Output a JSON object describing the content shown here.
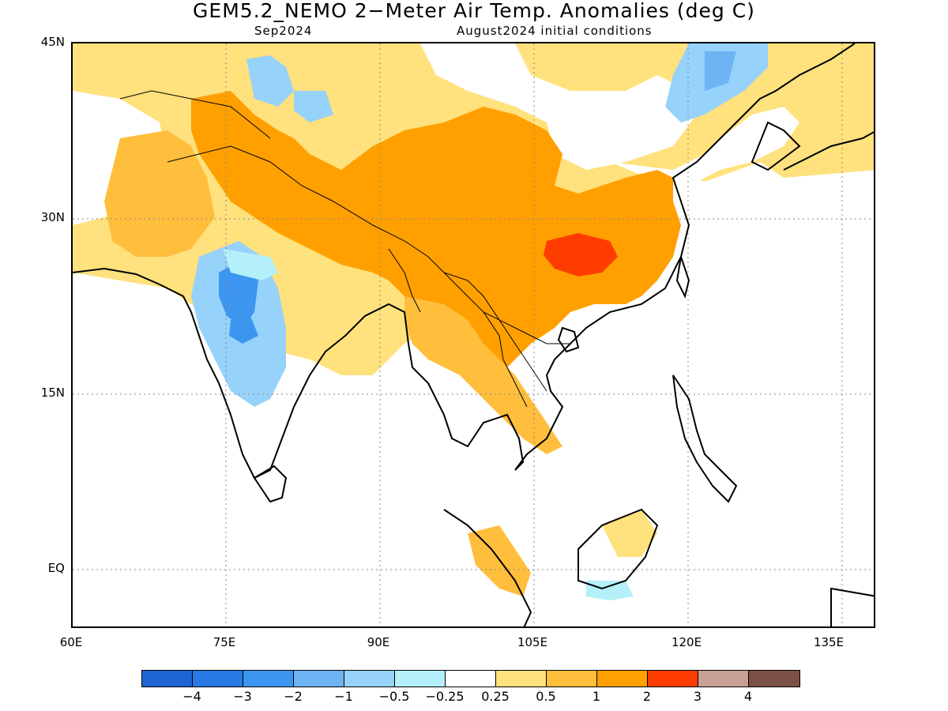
{
  "title": "GEM5.2_NEMO 2−Meter Air Temp. Anomalies (deg C)",
  "subtitle_left": "Sep2024",
  "subtitle_right": "August2024 initial conditions",
  "lat_labels": [
    "45N",
    "30N",
    "15N",
    "EQ"
  ],
  "lon_labels": [
    "60E",
    "75E",
    "90E",
    "105E",
    "120E",
    "135E"
  ],
  "colorbar": {
    "colors": [
      "#1e64d2",
      "#2878e6",
      "#3c96f0",
      "#6eb4f5",
      "#96d2fa",
      "#b4f0fa",
      "#ffffff",
      "#ffe17d",
      "#ffbe3c",
      "#ffa000",
      "#ff3c00",
      "#c8a096",
      "#7d5046"
    ],
    "labels": [
      "−4",
      "−3",
      "−2",
      "−1",
      "−0.5",
      "−0.25",
      "0.25",
      "0.5",
      "1",
      "2",
      "3",
      "4"
    ]
  }
}
